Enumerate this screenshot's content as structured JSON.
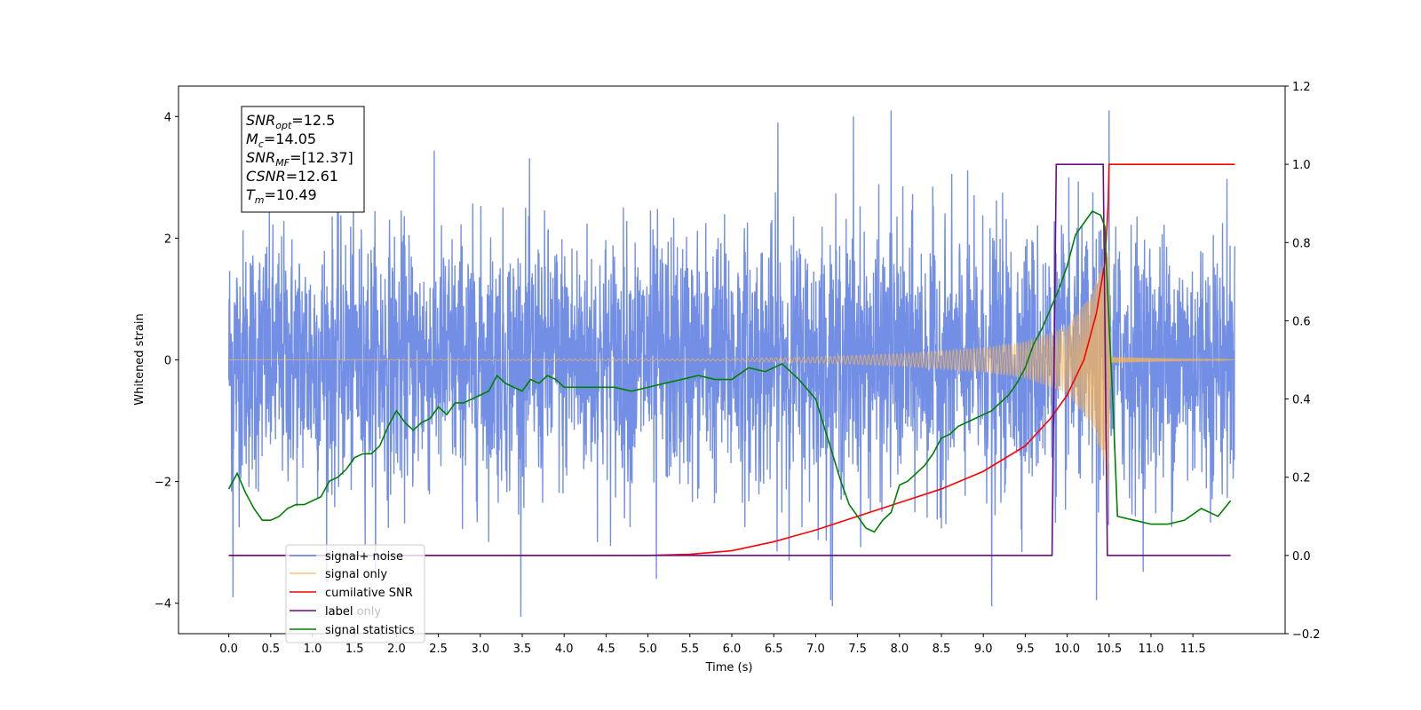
{
  "chart_data": {
    "type": "line",
    "xlabel": "Time (s)",
    "ylabel": "Whitened strain",
    "xlim": [
      -0.6,
      12.6
    ],
    "ylim": [
      -4.5,
      4.5
    ],
    "ylim_right": [
      -0.2,
      1.2
    ],
    "x_ticks": [
      "0.0",
      "0.5",
      "1.0",
      "1.5",
      "2.0",
      "2.5",
      "3.0",
      "3.5",
      "4.0",
      "4.5",
      "5.0",
      "5.5",
      "6.0",
      "6.5",
      "7.0",
      "7.5",
      "8.0",
      "8.5",
      "9.0",
      "9.5",
      "10.0",
      "10.5",
      "11.0",
      "11.5"
    ],
    "y_ticks_left": [
      "4",
      "2",
      "0",
      "−2",
      "−4"
    ],
    "y_ticks_right": [
      "1.2",
      "1.0",
      "0.8",
      "0.6",
      "0.4",
      "0.2",
      "0.0",
      "−0.2"
    ],
    "grid": false,
    "legend_position": "lower-left",
    "annotation": {
      "lines": [
        {
          "base": "SNR",
          "sub": "opt",
          "value": "=12.5"
        },
        {
          "base": "M",
          "sub": "c",
          "value": "=14.05"
        },
        {
          "base": "SNR",
          "sub": "MF",
          "value": "=[12.37]"
        },
        {
          "base": "CSNR",
          "sub": "",
          "value": "=12.61"
        },
        {
          "base": "T",
          "sub": "m",
          "value": "=10.49"
        }
      ]
    },
    "series": [
      {
        "name": "signal+ noise",
        "axis": "left",
        "color": "#5b7be0",
        "kind": "noise",
        "x_range": [
          0.0,
          12.0
        ],
        "typical_envelope": [
          -2.2,
          2.2
        ],
        "peak_values": [
          {
            "x": 0.05,
            "y": -3.9
          },
          {
            "x": 5.1,
            "y": -3.6
          },
          {
            "x": 7.2,
            "y": -4.05
          },
          {
            "x": 9.1,
            "y": -4.05
          },
          {
            "x": 10.35,
            "y": -3.95
          },
          {
            "x": 10.5,
            "y": -4.1
          },
          {
            "x": 7.45,
            "y": 4.0
          },
          {
            "x": 7.9,
            "y": 4.1
          },
          {
            "x": 10.5,
            "y": 4.1
          },
          {
            "x": 6.55,
            "y": 3.9
          }
        ]
      },
      {
        "name": "signal only",
        "axis": "left",
        "color": "#f5b45a",
        "kind": "chirp",
        "x_range": [
          0.0,
          12.0
        ],
        "envelope": [
          [
            0.0,
            0.0
          ],
          [
            6.0,
            0.02
          ],
          [
            7.0,
            0.05
          ],
          [
            8.0,
            0.1
          ],
          [
            9.0,
            0.2
          ],
          [
            9.5,
            0.3
          ],
          [
            10.0,
            0.55
          ],
          [
            10.3,
            1.1
          ],
          [
            10.45,
            1.7
          ],
          [
            10.49,
            2.2
          ],
          [
            10.52,
            0.05
          ],
          [
            12.0,
            0.0
          ]
        ]
      },
      {
        "name": "cumilative SNR",
        "axis": "right",
        "color": "#ff0000",
        "x": [
          0.0,
          5.0,
          5.5,
          6.0,
          6.5,
          7.0,
          7.5,
          8.0,
          8.5,
          9.0,
          9.5,
          9.8,
          10.0,
          10.2,
          10.35,
          10.45,
          10.49,
          10.5,
          12.0
        ],
        "y": [
          0.0,
          0.0,
          0.003,
          0.012,
          0.035,
          0.065,
          0.1,
          0.135,
          0.17,
          0.215,
          0.28,
          0.35,
          0.41,
          0.5,
          0.62,
          0.75,
          0.9,
          1.0,
          1.0
        ]
      },
      {
        "name": "label",
        "axis": "right",
        "color": "#6a0d84",
        "x": [
          0.0,
          9.82,
          9.87,
          10.43,
          10.48,
          11.95
        ],
        "y": [
          0.0,
          0.0,
          1.0,
          1.0,
          0.0,
          0.0
        ]
      },
      {
        "name": "signal statistics",
        "axis": "right",
        "color": "#008000",
        "x": [
          0.0,
          0.1,
          0.2,
          0.3,
          0.4,
          0.5,
          0.6,
          0.7,
          0.8,
          0.9,
          1.0,
          1.1,
          1.2,
          1.3,
          1.4,
          1.5,
          1.6,
          1.7,
          1.8,
          1.9,
          2.0,
          2.1,
          2.2,
          2.3,
          2.4,
          2.5,
          2.6,
          2.7,
          2.8,
          2.9,
          3.0,
          3.1,
          3.2,
          3.3,
          3.4,
          3.5,
          3.6,
          3.7,
          3.8,
          3.9,
          4.0,
          4.2,
          4.4,
          4.6,
          4.8,
          5.0,
          5.2,
          5.4,
          5.6,
          5.8,
          6.0,
          6.2,
          6.4,
          6.6,
          6.8,
          7.0,
          7.1,
          7.2,
          7.3,
          7.4,
          7.5,
          7.6,
          7.7,
          7.8,
          7.9,
          8.0,
          8.1,
          8.2,
          8.3,
          8.4,
          8.5,
          8.6,
          8.7,
          8.8,
          8.9,
          9.0,
          9.1,
          9.2,
          9.3,
          9.4,
          9.5,
          9.6,
          9.7,
          9.8,
          9.9,
          10.0,
          10.1,
          10.2,
          10.3,
          10.4,
          10.45,
          10.5,
          10.55,
          10.6,
          10.8,
          11.0,
          11.2,
          11.4,
          11.6,
          11.8,
          11.95
        ],
        "y": [
          0.17,
          0.21,
          0.16,
          0.12,
          0.09,
          0.09,
          0.1,
          0.12,
          0.13,
          0.13,
          0.14,
          0.15,
          0.19,
          0.2,
          0.22,
          0.25,
          0.26,
          0.26,
          0.28,
          0.33,
          0.37,
          0.34,
          0.32,
          0.34,
          0.35,
          0.38,
          0.36,
          0.39,
          0.39,
          0.4,
          0.41,
          0.42,
          0.46,
          0.44,
          0.43,
          0.42,
          0.45,
          0.44,
          0.46,
          0.45,
          0.43,
          0.43,
          0.43,
          0.43,
          0.42,
          0.43,
          0.44,
          0.45,
          0.46,
          0.45,
          0.45,
          0.48,
          0.47,
          0.49,
          0.45,
          0.4,
          0.33,
          0.26,
          0.19,
          0.13,
          0.1,
          0.07,
          0.06,
          0.09,
          0.11,
          0.18,
          0.19,
          0.21,
          0.23,
          0.26,
          0.3,
          0.31,
          0.33,
          0.34,
          0.35,
          0.36,
          0.37,
          0.39,
          0.41,
          0.44,
          0.48,
          0.54,
          0.58,
          0.63,
          0.68,
          0.74,
          0.82,
          0.85,
          0.88,
          0.87,
          0.84,
          0.59,
          0.37,
          0.1,
          0.09,
          0.08,
          0.08,
          0.09,
          0.12,
          0.1,
          0.14
        ]
      }
    ],
    "legend_entries": [
      "signal+ noise",
      "signal only",
      "cumilative SNR",
      "label",
      "label only",
      "signal statistics"
    ]
  }
}
